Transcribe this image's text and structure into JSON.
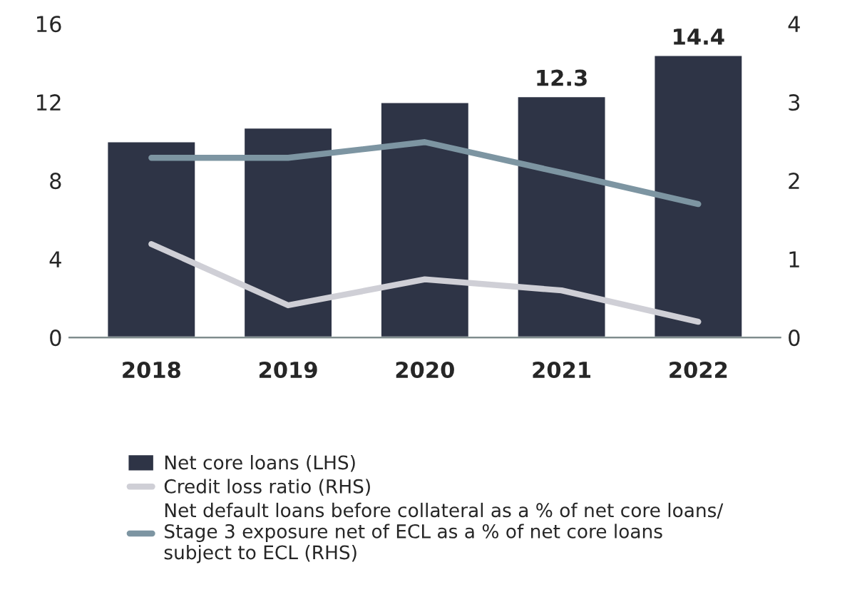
{
  "chart_data": {
    "type": "bar",
    "categories": [
      "2018",
      "2019",
      "2020",
      "2021",
      "2022"
    ],
    "series": [
      {
        "name": "Net core loans (LHS)",
        "color": "#2e3446",
        "values": [
          10.0,
          10.7,
          12.0,
          12.3,
          14.4
        ],
        "value_labels": [
          null,
          null,
          null,
          "12.3",
          "14.4"
        ]
      },
      {
        "name": "Credit loss ratio (RHS)",
        "type": "line",
        "axis": "y2",
        "color": "#cfcfd6",
        "values": [
          1.19,
          0.41,
          0.74,
          0.6,
          0.2
        ]
      },
      {
        "name": "Net default loans before collateral as a % of net core loans/\nStage 3 exposure net of ECL as a % of net core loans\nsubject to ECL (RHS)",
        "type": "line",
        "axis": "y2",
        "color": "#7d95a2",
        "values": [
          2.29,
          2.29,
          2.49,
          2.1,
          1.7
        ]
      }
    ],
    "ylim": [
      0,
      16
    ],
    "yticks": [
      0,
      4,
      8,
      12,
      16
    ],
    "y2lim": [
      0,
      4
    ],
    "y2ticks": [
      0,
      1,
      2,
      3,
      4
    ],
    "grid": false,
    "legend": "bottom",
    "marker": "none",
    "line_style": "solid"
  }
}
